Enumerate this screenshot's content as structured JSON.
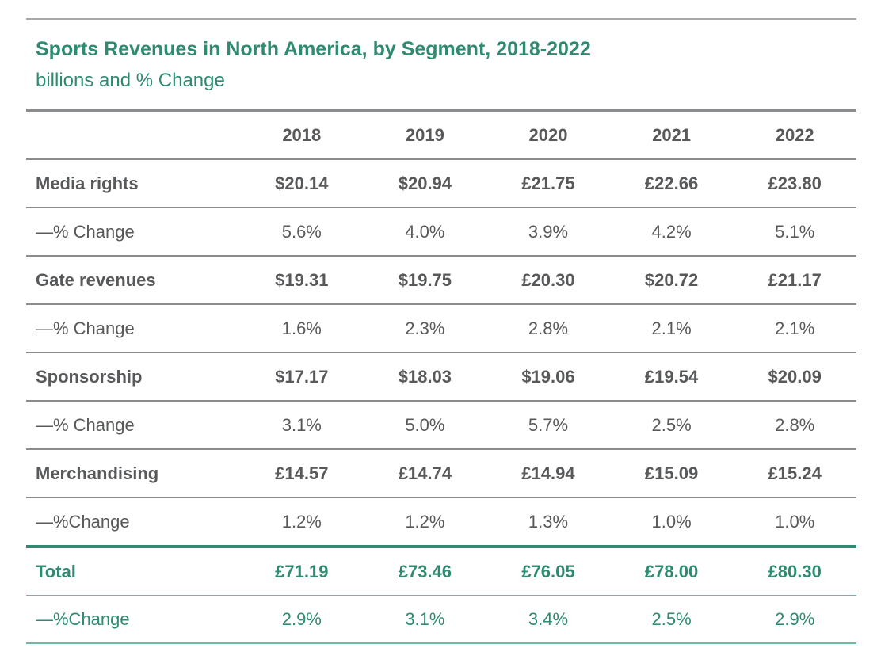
{
  "title": "Sports Revenues in North America, by Segment, 2018-2022",
  "subtitle": "billions and % Change",
  "chart_data": {
    "type": "table",
    "columns": [
      "2018",
      "2019",
      "2020",
      "2021",
      "2022"
    ],
    "rows": [
      {
        "label": "Media rights",
        "kind": "segment",
        "values": [
          "$20.14",
          "$20.94",
          "£21.75",
          "£22.66",
          "£23.80"
        ]
      },
      {
        "label": "—% Change",
        "kind": "pct",
        "values": [
          "5.6%",
          "4.0%",
          "3.9%",
          "4.2%",
          "5.1%"
        ]
      },
      {
        "label": "Gate revenues",
        "kind": "segment",
        "values": [
          "$19.31",
          "$19.75",
          "£20.30",
          "$20.72",
          "£21.17"
        ]
      },
      {
        "label": "—% Change",
        "kind": "pct",
        "values": [
          "1.6%",
          "2.3%",
          "2.8%",
          "2.1%",
          "2.1%"
        ]
      },
      {
        "label": "Sponsorship",
        "kind": "segment",
        "values": [
          "$17.17",
          "$18.03",
          "$19.06",
          "£19.54",
          "$20.09"
        ]
      },
      {
        "label": "—% Change",
        "kind": "pct",
        "values": [
          "3.1%",
          "5.0%",
          "5.7%",
          "2.5%",
          "2.8%"
        ]
      },
      {
        "label": "Merchandising",
        "kind": "segment",
        "values": [
          "£14.57",
          "£14.74",
          "£14.94",
          "£15.09",
          "£15.24"
        ]
      },
      {
        "label": "—%Change",
        "kind": "pct",
        "values": [
          "1.2%",
          "1.2%",
          "1.3%",
          "1.0%",
          "1.0%"
        ]
      },
      {
        "label": "Total",
        "kind": "total",
        "values": [
          "£71.19",
          "£73.46",
          "£76.05",
          "£78.00",
          "£80.30"
        ]
      },
      {
        "label": "—%Change",
        "kind": "total-pct",
        "values": [
          "2.9%",
          "3.1%",
          "3.4%",
          "2.5%",
          "2.9%"
        ]
      }
    ]
  }
}
